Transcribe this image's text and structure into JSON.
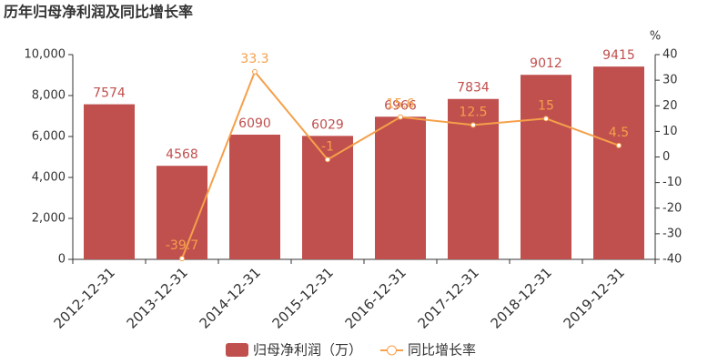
{
  "chart_data": {
    "type": "bar_line",
    "title": "历年归母净利润及同比增长率",
    "y2_label": "%",
    "categories": [
      "2012-12-31",
      "2013-12-31",
      "2014-12-31",
      "2015-12-31",
      "2016-12-31",
      "2017-12-31",
      "2018-12-31",
      "2019-12-31"
    ],
    "series": [
      {
        "name": "归母净利润（万）",
        "type": "bar",
        "color": "#c0504e",
        "values": [
          7574,
          4568,
          6090,
          6029,
          6966,
          7834,
          9012,
          9415
        ]
      },
      {
        "name": "同比增长率",
        "type": "line",
        "axis": "y2",
        "color": "#f5a04a",
        "values": [
          null,
          -39.7,
          33.3,
          -1,
          15.6,
          12.5,
          15,
          4.5
        ]
      }
    ],
    "ylim": [
      0,
      10000
    ],
    "yticks": [
      0,
      {
        "value": 2000,
        "label": "2,000"
      },
      {
        "value": 4000,
        "label": "4,000"
      },
      {
        "value": 6000,
        "label": "6,000"
      },
      {
        "value": 8000,
        "label": "8,000"
      },
      {
        "value": 10000,
        "label": "10,000"
      }
    ],
    "y2lim": [
      -40,
      40
    ],
    "y2ticks": [
      -40,
      -30,
      -20,
      -10,
      0,
      10,
      20,
      30,
      40
    ],
    "legend": "bottom"
  }
}
